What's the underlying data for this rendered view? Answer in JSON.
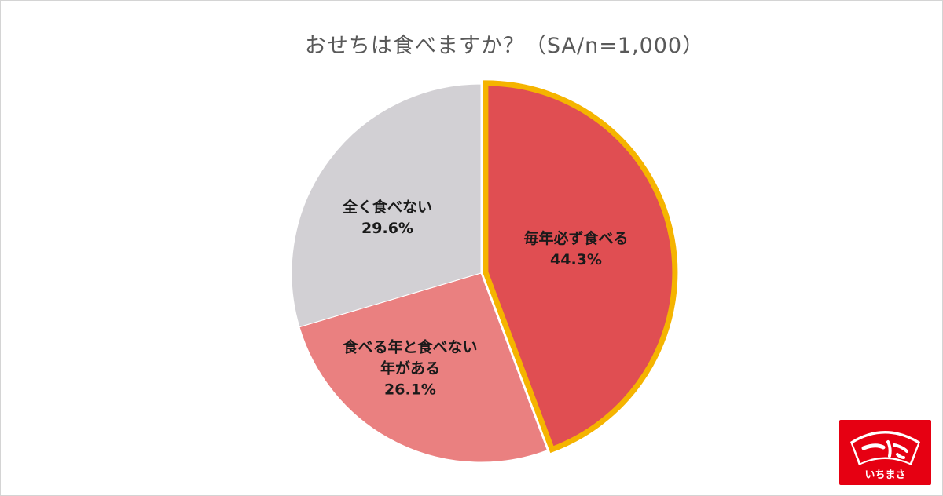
{
  "chart_data": {
    "type": "pie",
    "title": "おせちは食べますか？（SA/n=1,000）",
    "slices": [
      {
        "label_lines": [
          "毎年必ず食べる"
        ],
        "value": 44.3,
        "value_label": "44.3%",
        "color": "#e04e52",
        "highlighted": true
      },
      {
        "label_lines": [
          "食べる年と食べない",
          "年がある"
        ],
        "value": 26.1,
        "value_label": "26.1%",
        "color": "#ea8080",
        "highlighted": false
      },
      {
        "label_lines": [
          "全く食べない"
        ],
        "value": 29.6,
        "value_label": "29.6%",
        "color": "#d2d0d4",
        "highlighted": false
      }
    ],
    "start_angle": "12 o'clock",
    "direction": "clockwise",
    "highlight_color": "#f5b400",
    "legend": "none"
  },
  "logo": {
    "brand_text": "いちまさ",
    "color": "#e60012"
  }
}
